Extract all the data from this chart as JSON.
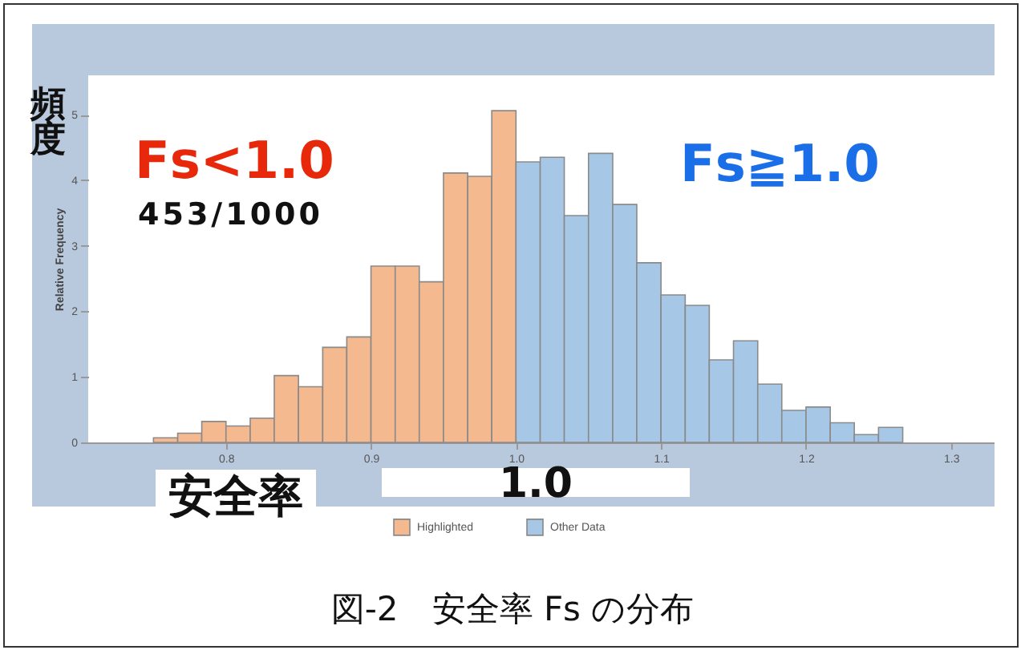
{
  "chart_data": {
    "type": "histogram",
    "title": "図-2　安全率 Fs の分布",
    "ylabel": "Relative Frequency",
    "annotations": [
      "頻度",
      "Fs<1.0",
      "453/1000",
      "Fs≧1.0",
      "安全率",
      "1.0"
    ],
    "bins": [
      0.75,
      0.7667,
      0.7833,
      0.8,
      0.8167,
      0.8333,
      0.85,
      0.8667,
      0.8833,
      0.9,
      0.9167,
      0.9333,
      0.95,
      0.9667,
      0.9833,
      1.0,
      1.0167,
      1.0333,
      1.05,
      1.0667,
      1.0833,
      1.1,
      1.1167,
      1.1333,
      1.15,
      1.1667,
      1.1833,
      1.2,
      1.2167,
      1.2333,
      1.25,
      1.2667
    ],
    "series": [
      {
        "name": "Highlighted",
        "color": "#f4b98e",
        "values": [
          0.07,
          0.14,
          0.32,
          0.25,
          0.37,
          1.02,
          0.85,
          1.45,
          1.61,
          2.69,
          2.69,
          2.45,
          4.11,
          4.06,
          5.06,
          null,
          null,
          null,
          null,
          null,
          null,
          null,
          null,
          null,
          null,
          null,
          null,
          null,
          null,
          null,
          null
        ]
      },
      {
        "name": "Other Data",
        "color": "#a6c8e6",
        "values": [
          null,
          null,
          null,
          null,
          null,
          null,
          null,
          null,
          null,
          null,
          null,
          null,
          null,
          null,
          null,
          4.28,
          4.35,
          3.46,
          4.41,
          3.63,
          2.74,
          2.25,
          2.09,
          1.26,
          1.55,
          0.89,
          0.49,
          0.54,
          0.3,
          0.12,
          0.23
        ]
      }
    ],
    "xlim": [
      0.705,
      1.33
    ],
    "xticks": [
      0.8,
      0.9,
      {
        "value": 1,
        "label": "1.0"
      },
      1.1,
      1.2,
      1.3
    ],
    "ylim": [
      0,
      5.6
    ],
    "yticks": [
      0,
      1,
      2,
      3,
      4,
      5
    ],
    "legend": "bottom"
  }
}
